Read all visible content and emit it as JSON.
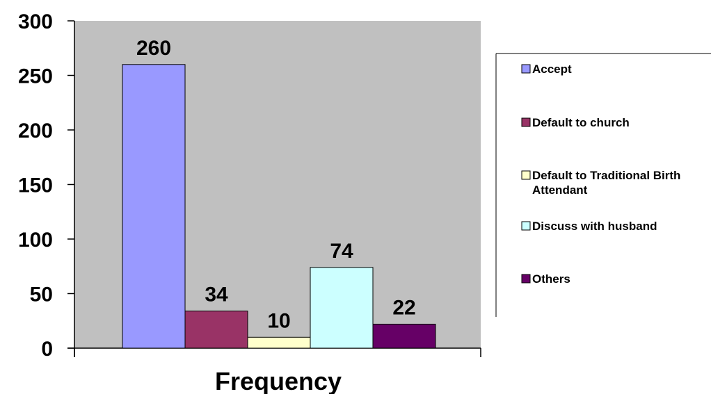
{
  "chart_data": {
    "type": "bar",
    "title": "",
    "xlabel": "Frequency",
    "ylabel": "",
    "ylim": [
      0,
      300
    ],
    "yticks": [
      0,
      50,
      100,
      150,
      200,
      250,
      300
    ],
    "grid": false,
    "legend_position": "right",
    "plot_background": "#c0c0c0",
    "series": [
      {
        "name": "Accept",
        "value": 260,
        "color": "#9999ff"
      },
      {
        "name": "Default to church",
        "value": 34,
        "color": "#993366"
      },
      {
        "name": "Default to Traditional Birth Attendant",
        "legend_lines": [
          "Default to Traditional Birth",
          "Attendant"
        ],
        "value": 10,
        "color": "#ffffcc"
      },
      {
        "name": "Discuss with husband",
        "value": 74,
        "color": "#ccffff"
      },
      {
        "name": "Others",
        "value": 22,
        "color": "#660066"
      }
    ]
  }
}
